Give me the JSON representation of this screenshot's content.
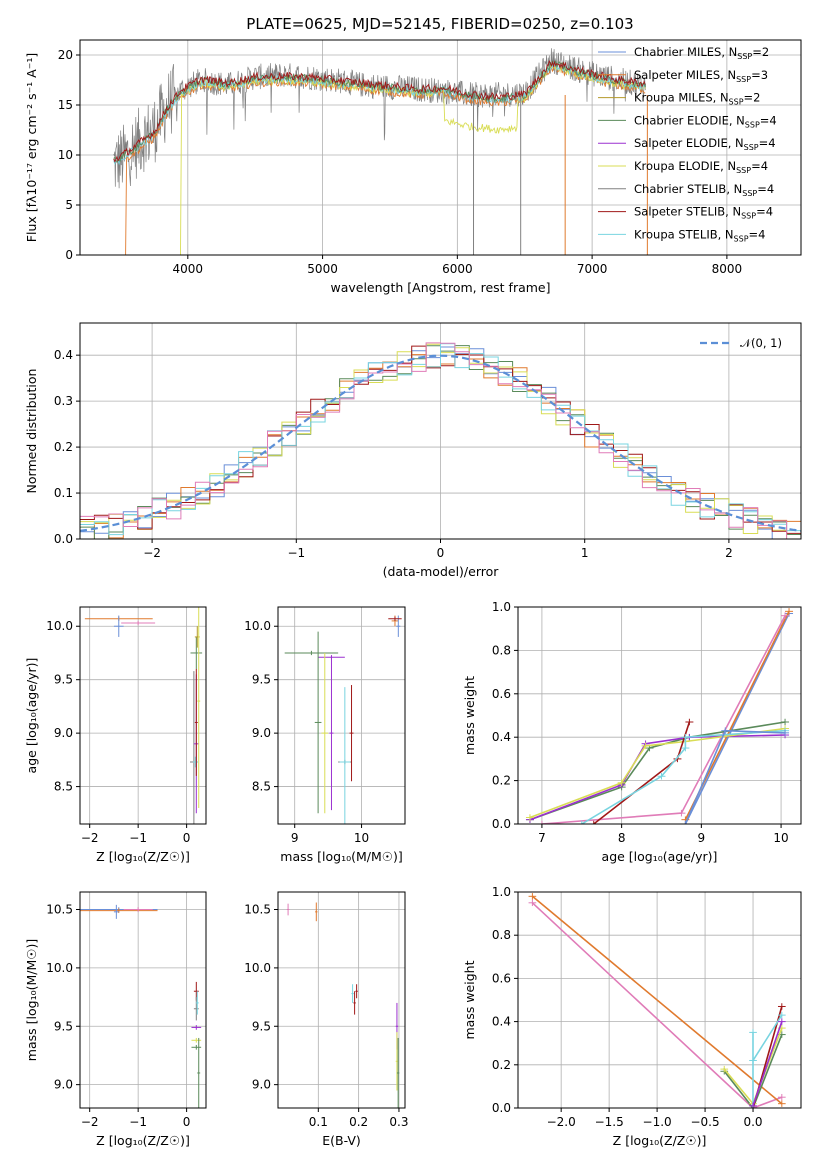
{
  "figure_title": "PLATE=0625, MJD=52145, FIBERID=0250, z=0.103",
  "colors": {
    "Chabrier MILES": "#6a8fd8",
    "Salpeter MILES": "#e07a2e",
    "Kroupa MILES": "#b59a2a",
    "Chabrier ELODIE": "#5a8a5a",
    "Salpeter ELODIE": "#9b30d0",
    "Kroupa ELODIE": "#d9dd55",
    "Chabrier STELIB": "#808080",
    "Salpeter STELIB": "#a01818",
    "Kroupa STELIB": "#78d4e0",
    "pink": "#e07cb8"
  },
  "chart_data": [
    {
      "id": "spectrum",
      "type": "line",
      "xlabel": "wavelength [Angstrom, rest frame]",
      "ylabel": "Flux [fλ10⁻¹⁷ erg cm⁻² s⁻¹ A⁻¹]",
      "xlim": [
        3200,
        8550
      ],
      "ylim": [
        0,
        21.5
      ],
      "xticks": [
        4000,
        5000,
        6000,
        7000,
        8000
      ],
      "yticks": [
        0,
        5,
        10,
        15,
        20
      ],
      "grid": true,
      "legend_position": "right",
      "legend": [
        {
          "name": "Chabrier MILES, N",
          "sub": "SSP",
          "suffix": "=2"
        },
        {
          "name": "Salpeter MILES, N",
          "sub": "SSP",
          "suffix": "=3"
        },
        {
          "name": "Kroupa MILES, N",
          "sub": "SSP",
          "suffix": "=2"
        },
        {
          "name": "Chabrier ELODIE, N",
          "sub": "SSP",
          "suffix": "=4"
        },
        {
          "name": "Salpeter ELODIE, N",
          "sub": "SSP",
          "suffix": "=4"
        },
        {
          "name": "Kroupa ELODIE, N",
          "sub": "SSP",
          "suffix": "=4"
        },
        {
          "name": "Chabrier STELIB, N",
          "sub": "SSP",
          "suffix": "=4"
        },
        {
          "name": "Salpeter STELIB, N",
          "sub": "SSP",
          "suffix": "=4"
        },
        {
          "name": "Kroupa STELIB, N",
          "sub": "SSP",
          "suffix": "=4"
        }
      ],
      "data_curve": [
        [
          3450,
          9.0
        ],
        [
          3550,
          10.0
        ],
        [
          3650,
          11.5
        ],
        [
          3750,
          12.5
        ],
        [
          3850,
          15.0
        ],
        [
          3950,
          16.5
        ],
        [
          4100,
          17.5
        ],
        [
          4300,
          17.0
        ],
        [
          4500,
          17.8
        ],
        [
          4700,
          18.0
        ],
        [
          4900,
          17.8
        ],
        [
          5100,
          17.5
        ],
        [
          5300,
          17.0
        ],
        [
          5500,
          16.8
        ],
        [
          5700,
          16.6
        ],
        [
          5900,
          16.4
        ],
        [
          6100,
          16.0
        ],
        [
          6300,
          16.0
        ],
        [
          6500,
          16.2
        ],
        [
          6700,
          19.5
        ],
        [
          6900,
          18.5
        ],
        [
          7100,
          17.8
        ],
        [
          7300,
          17.2
        ],
        [
          7400,
          17.0
        ]
      ],
      "model_curve": [
        [
          3450,
          9.2
        ],
        [
          3550,
          10.0
        ],
        [
          3650,
          11.0
        ],
        [
          3750,
          12.0
        ],
        [
          3850,
          14.5
        ],
        [
          3950,
          16.2
        ],
        [
          4100,
          17.3
        ],
        [
          4300,
          16.9
        ],
        [
          4500,
          17.5
        ],
        [
          4700,
          17.6
        ],
        [
          4900,
          17.5
        ],
        [
          5100,
          17.2
        ],
        [
          5300,
          16.9
        ],
        [
          5500,
          16.6
        ],
        [
          5700,
          16.3
        ],
        [
          5900,
          16.4
        ],
        [
          6100,
          15.8
        ],
        [
          6300,
          15.5
        ],
        [
          6500,
          15.8
        ],
        [
          6700,
          19.0
        ],
        [
          6900,
          18.2
        ],
        [
          7100,
          17.5
        ],
        [
          7300,
          17.0
        ],
        [
          7400,
          16.8
        ]
      ]
    },
    {
      "id": "residuals",
      "type": "bar",
      "xlabel": "(data-model)/error",
      "ylabel": "Normed distribution",
      "xlim": [
        -2.5,
        2.5
      ],
      "ylim": [
        0,
        0.47
      ],
      "xticks": [
        -2,
        -1,
        0,
        1,
        2
      ],
      "xtick_labels": [
        "−2",
        "−1",
        "0",
        "1",
        "2"
      ],
      "yticks": [
        0.0,
        0.1,
        0.2,
        0.3,
        0.4
      ],
      "grid": true,
      "legend_position": "top-right",
      "legend": [
        "𝒩(0, 1)"
      ],
      "bin_width": 0.1
    },
    {
      "id": "age_vs_Z",
      "type": "scatter",
      "xlabel": "Z [log₁₀(Z/Z☉)]",
      "ylabel": "age  [log₁₀(age/yr)]",
      "xlim": [
        -2.2,
        0.4
      ],
      "ylim": [
        8.15,
        10.18
      ],
      "xticks": [
        -2,
        -1,
        0
      ],
      "xtick_labels": [
        "−2",
        "−1",
        "0"
      ],
      "yticks": [
        8.5,
        9.0,
        9.5,
        10.0
      ],
      "grid": true
    },
    {
      "id": "age_vs_mass",
      "type": "scatter",
      "xlabel": "mass [log₁₀(M/M☉)]",
      "ylabel": "",
      "xlim": [
        8.75,
        10.65
      ],
      "ylim": [
        8.15,
        10.18
      ],
      "xticks": [
        9,
        10
      ],
      "yticks": [
        8.5,
        9.0,
        9.5,
        10.0
      ],
      "grid": true
    },
    {
      "id": "weight_vs_age",
      "type": "line",
      "xlabel": "age  [log₁₀(age/yr)]",
      "ylabel": "mass weight",
      "xlim": [
        6.7,
        10.25
      ],
      "ylim": [
        0,
        1.0
      ],
      "xticks": [
        7,
        8,
        9,
        10
      ],
      "yticks": [
        0.0,
        0.2,
        0.4,
        0.6,
        0.8,
        1.0
      ],
      "grid": true
    },
    {
      "id": "mass_vs_Z",
      "type": "scatter",
      "xlabel": "Z [log₁₀(Z/Z☉)]",
      "ylabel": "mass [log₁₀(M/M☉)]",
      "xlim": [
        -2.2,
        0.4
      ],
      "ylim": [
        8.8,
        10.65
      ],
      "xticks": [
        -2,
        -1,
        0
      ],
      "xtick_labels": [
        "−2",
        "−1",
        "0"
      ],
      "yticks": [
        9.0,
        9.5,
        10.0,
        10.5
      ],
      "grid": true
    },
    {
      "id": "mass_vs_ebv",
      "type": "scatter",
      "xlabel": "E(B-V)",
      "ylabel": "",
      "xlim": [
        0.0,
        0.315
      ],
      "ylim": [
        8.8,
        10.65
      ],
      "xticks": [
        0.1,
        0.2,
        0.3
      ],
      "yticks": [
        9.0,
        9.5,
        10.0,
        10.5
      ],
      "grid": true
    },
    {
      "id": "weight_vs_Z",
      "type": "line",
      "xlabel": "Z [log₁₀(Z/Z☉)]",
      "ylabel": "mass weight",
      "xlim": [
        -2.45,
        0.5
      ],
      "ylim": [
        0,
        1.0
      ],
      "xticks": [
        -2.0,
        -1.5,
        -1.0,
        -0.5,
        0.0
      ],
      "xtick_labels": [
        "−2.0",
        "−1.5",
        "−1.0",
        "−0.5",
        "0.0"
      ],
      "yticks": [
        0.0,
        0.2,
        0.4,
        0.6,
        0.8,
        1.0
      ],
      "grid": true
    }
  ]
}
